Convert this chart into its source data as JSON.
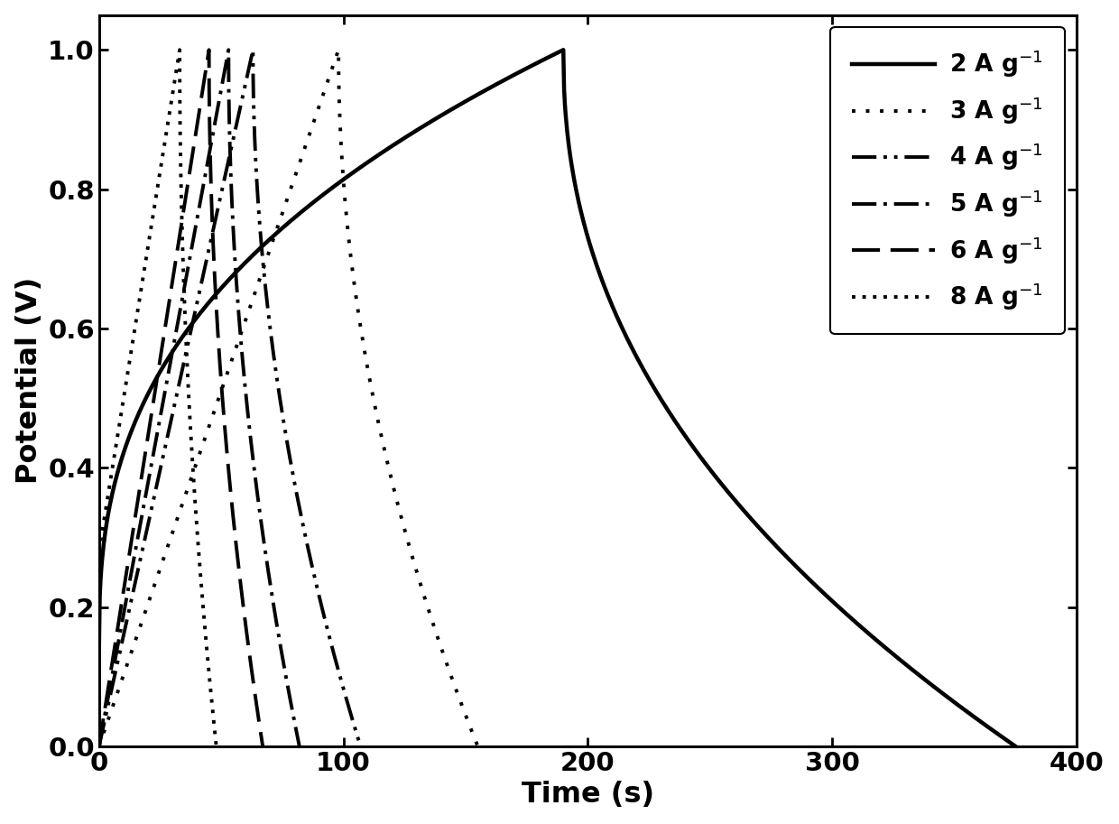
{
  "xlabel": "Time (s)",
  "ylabel": "Potential (V)",
  "xlim": [
    0,
    400
  ],
  "ylim": [
    0.0,
    1.05
  ],
  "xticks": [
    0,
    100,
    200,
    300,
    400
  ],
  "yticks": [
    0.0,
    0.2,
    0.4,
    0.6,
    0.8,
    1.0
  ],
  "legend_labels": [
    "2 A g$^{-1}$",
    "3 A g$^{-1}$",
    "4 A g$^{-1}$",
    "5 A g$^{-1}$",
    "6 A g$^{-1}$",
    "8 A g$^{-1}$"
  ],
  "curve_params": [
    {
      "label": "2 A g$^{-1}$",
      "t_charge_end": 190,
      "t_discharge_end": 375,
      "v_start": 0.14,
      "linestyle": "solid",
      "linewidth": 3.2,
      "charge_exp": 0.38,
      "discharge_exp": 0.45
    },
    {
      "label": "3 A g$^{-1}$",
      "t_charge_end": 98,
      "t_discharge_end": 155,
      "v_start": 0.0,
      "linestyle": [
        0,
        [
          1,
          3
        ]
      ],
      "linewidth": 2.8,
      "charge_exp": 1.0,
      "discharge_exp": 0.5
    },
    {
      "label": "4 A g$^{-1}$",
      "t_charge_end": 63,
      "t_discharge_end": 107,
      "v_start": 0.0,
      "linestyle": [
        0,
        [
          7,
          2,
          1,
          2,
          1,
          2
        ]
      ],
      "linewidth": 2.8,
      "charge_exp": 1.0,
      "discharge_exp": 0.5
    },
    {
      "label": "5 A g$^{-1}$",
      "t_charge_end": 53,
      "t_discharge_end": 82,
      "v_start": 0.0,
      "linestyle": [
        0,
        [
          7,
          2,
          1,
          2
        ]
      ],
      "linewidth": 2.8,
      "charge_exp": 1.0,
      "discharge_exp": 0.5
    },
    {
      "label": "6 A g$^{-1}$",
      "t_charge_end": 45,
      "t_discharge_end": 67,
      "v_start": 0.0,
      "linestyle": [
        0,
        [
          8,
          3
        ]
      ],
      "linewidth": 2.8,
      "charge_exp": 1.0,
      "discharge_exp": 0.5
    },
    {
      "label": "8 A g$^{-1}$",
      "t_charge_end": 33,
      "t_discharge_end": 48,
      "v_start": 0.28,
      "linestyle": [
        0,
        [
          1,
          2
        ]
      ],
      "linewidth": 2.8,
      "charge_exp": 1.0,
      "discharge_exp": 0.5
    }
  ],
  "figsize": [
    12.4,
    9.13
  ],
  "dpi": 100,
  "label_fontsize": 23,
  "tick_fontsize": 21,
  "legend_fontsize": 19
}
